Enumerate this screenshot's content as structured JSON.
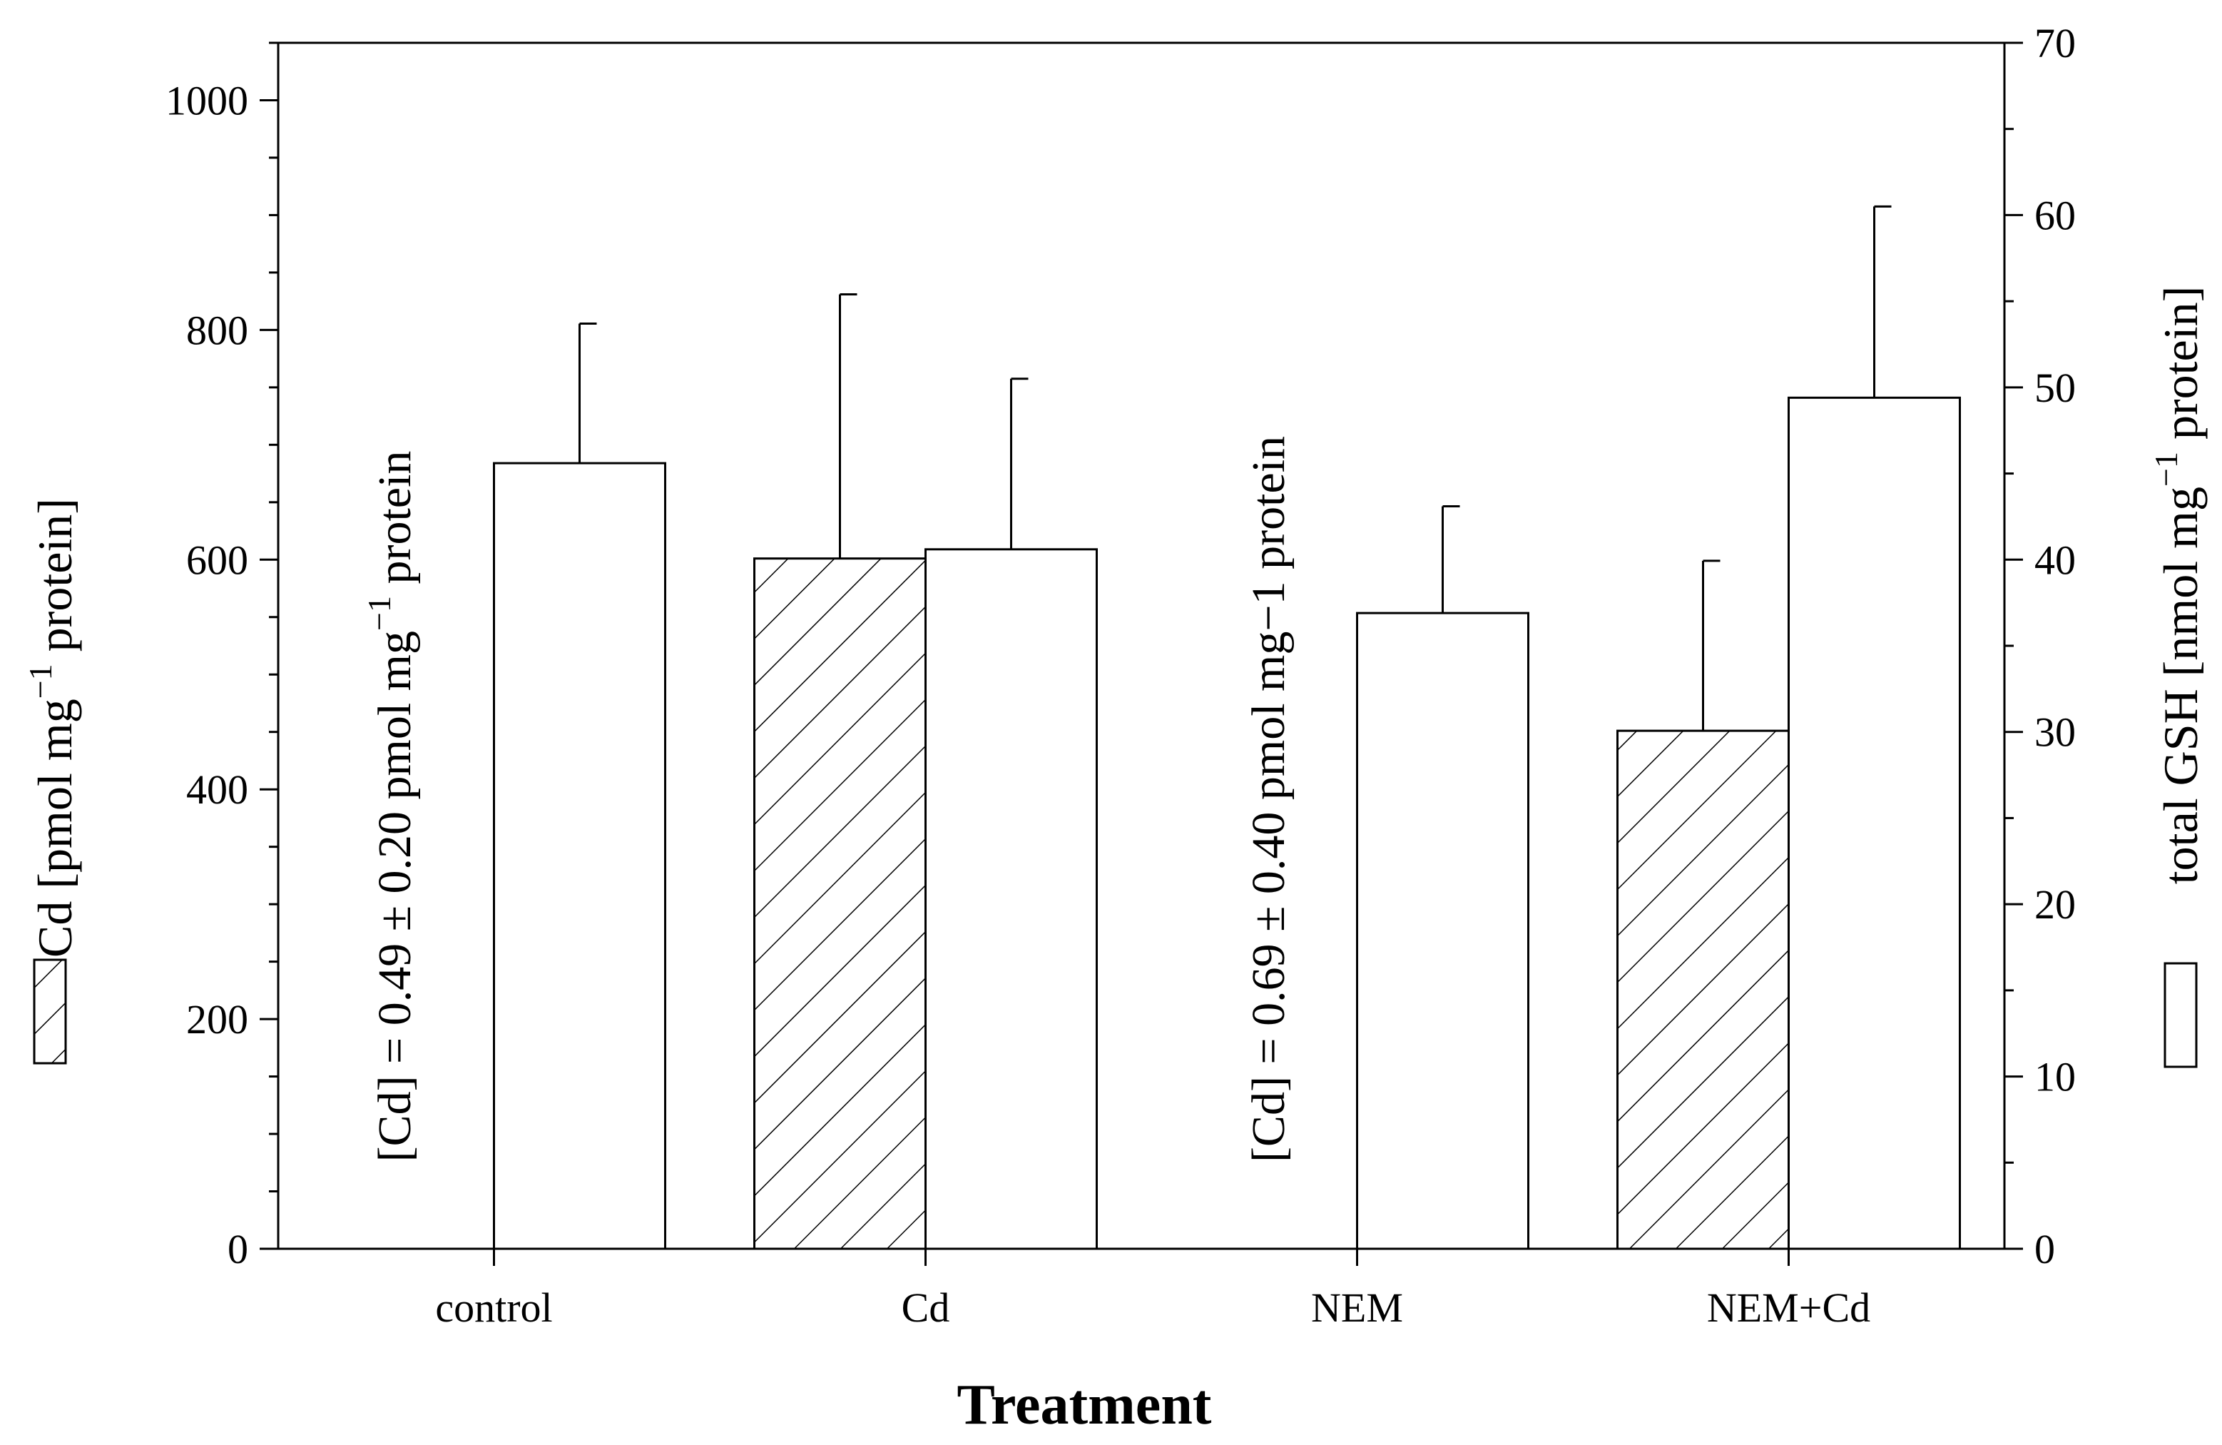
{
  "chart_data": {
    "type": "bar",
    "categories": [
      "control",
      "Cd",
      "NEM",
      "NEM+Cd"
    ],
    "xlabel": "Treatment",
    "series": [
      {
        "name": "Cd",
        "axis": "left",
        "pattern": "hatched",
        "values": [
          0.49,
          601,
          0.69,
          451
        ],
        "errors": [
          0.2,
          230,
          0.4,
          148
        ]
      },
      {
        "name": "total GSH",
        "axis": "right",
        "pattern": "open",
        "values": [
          45.6,
          40.6,
          36.9,
          49.4
        ],
        "errors": [
          8.1,
          9.9,
          6.2,
          11.1
        ]
      }
    ],
    "left_axis": {
      "label_main": "Cd [pmol mg",
      "label_sup": "−1",
      "label_end": " protein]",
      "range": [
        0,
        1050
      ],
      "major_ticks": [
        0,
        200,
        400,
        600,
        800,
        1000
      ],
      "tick_labels": [
        "0",
        "200",
        "400",
        "600",
        "800",
        "1000"
      ]
    },
    "right_axis": {
      "label_main": "total GSH [nmol mg",
      "label_sup": "−1",
      "label_end": " protein]",
      "range": [
        0,
        70
      ],
      "major_ticks": [
        0,
        10,
        20,
        30,
        40,
        50,
        60,
        70
      ],
      "tick_labels": [
        "0",
        "10",
        "20",
        "30",
        "40",
        "50",
        "60",
        "70"
      ]
    },
    "annotations": [
      {
        "category": "control",
        "text_main": "[Cd] = 0.49 ± 0.20 pmol mg",
        "text_sup": "−1",
        "text_end": " protein"
      },
      {
        "category": "NEM",
        "text_main": "[Cd] = 0.69 ± 0.40 pmol mg−1 protein",
        "text_sup": "",
        "text_end": ""
      }
    ]
  }
}
